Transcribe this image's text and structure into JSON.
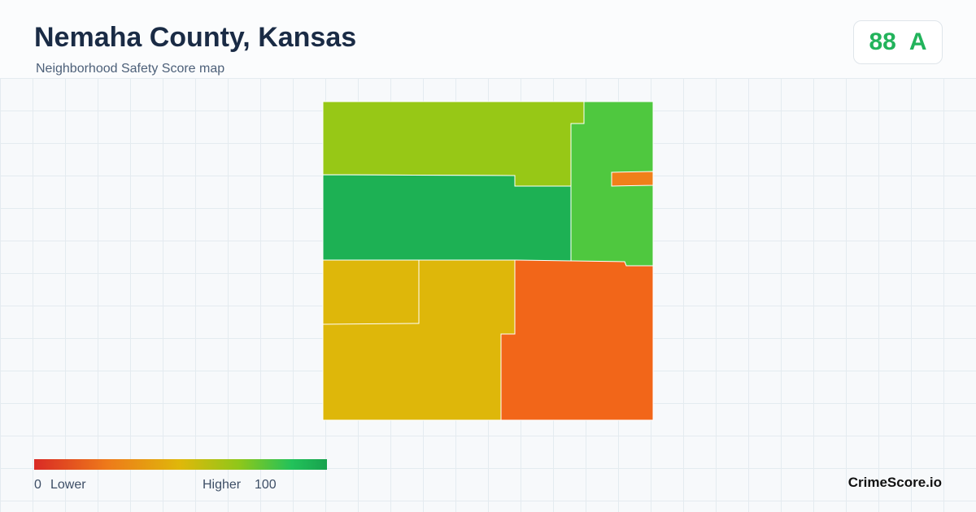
{
  "header": {
    "title": "Nemaha County, Kansas",
    "subtitle": "Neighborhood Safety Score map"
  },
  "score": {
    "value": "88",
    "grade": "A"
  },
  "legend": {
    "min": "0",
    "min_label": "Lower",
    "max_label": "Higher",
    "max": "100"
  },
  "brand": "CrimeScore.io"
}
